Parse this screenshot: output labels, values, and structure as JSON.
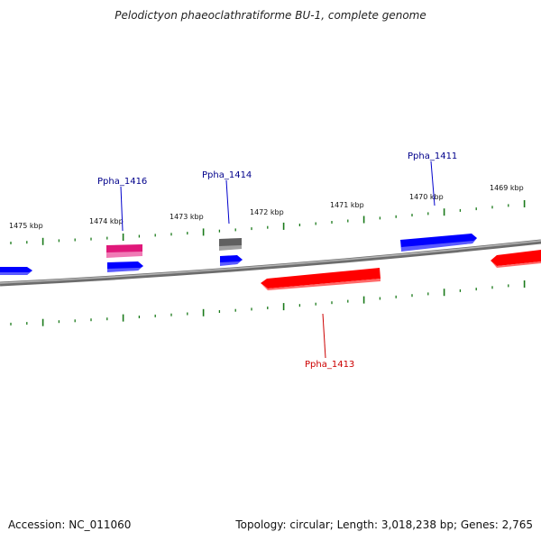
{
  "title": "Pelodictyon phaeoclathratiforme BU-1, complete genome",
  "footer": {
    "accession": "Accession: NC_011060",
    "summary": "Topology: circular; Length: 3,018,238 bp; Genes: 2,765"
  },
  "kbp_labels": [
    "1475 kbp",
    "1474 kbp",
    "1473 kbp",
    "1472 kbp",
    "1471 kbp",
    "1470 kbp",
    "1469 kbp"
  ],
  "gene_labels": [
    {
      "text": "Ppha_1416",
      "color": "#00008b"
    },
    {
      "text": "Ppha_1414",
      "color": "#00008b"
    },
    {
      "text": "Ppha_1411",
      "color": "#00008b"
    },
    {
      "text": "Ppha_1413",
      "color": "#cc0000"
    }
  ],
  "colors": {
    "forward": "#0000ff",
    "reverse": "#ff0000",
    "pink": "#e0187a",
    "gray_gene": "#606060",
    "backbone": "#8a8a8a",
    "ticks": "#1a7a1a"
  }
}
